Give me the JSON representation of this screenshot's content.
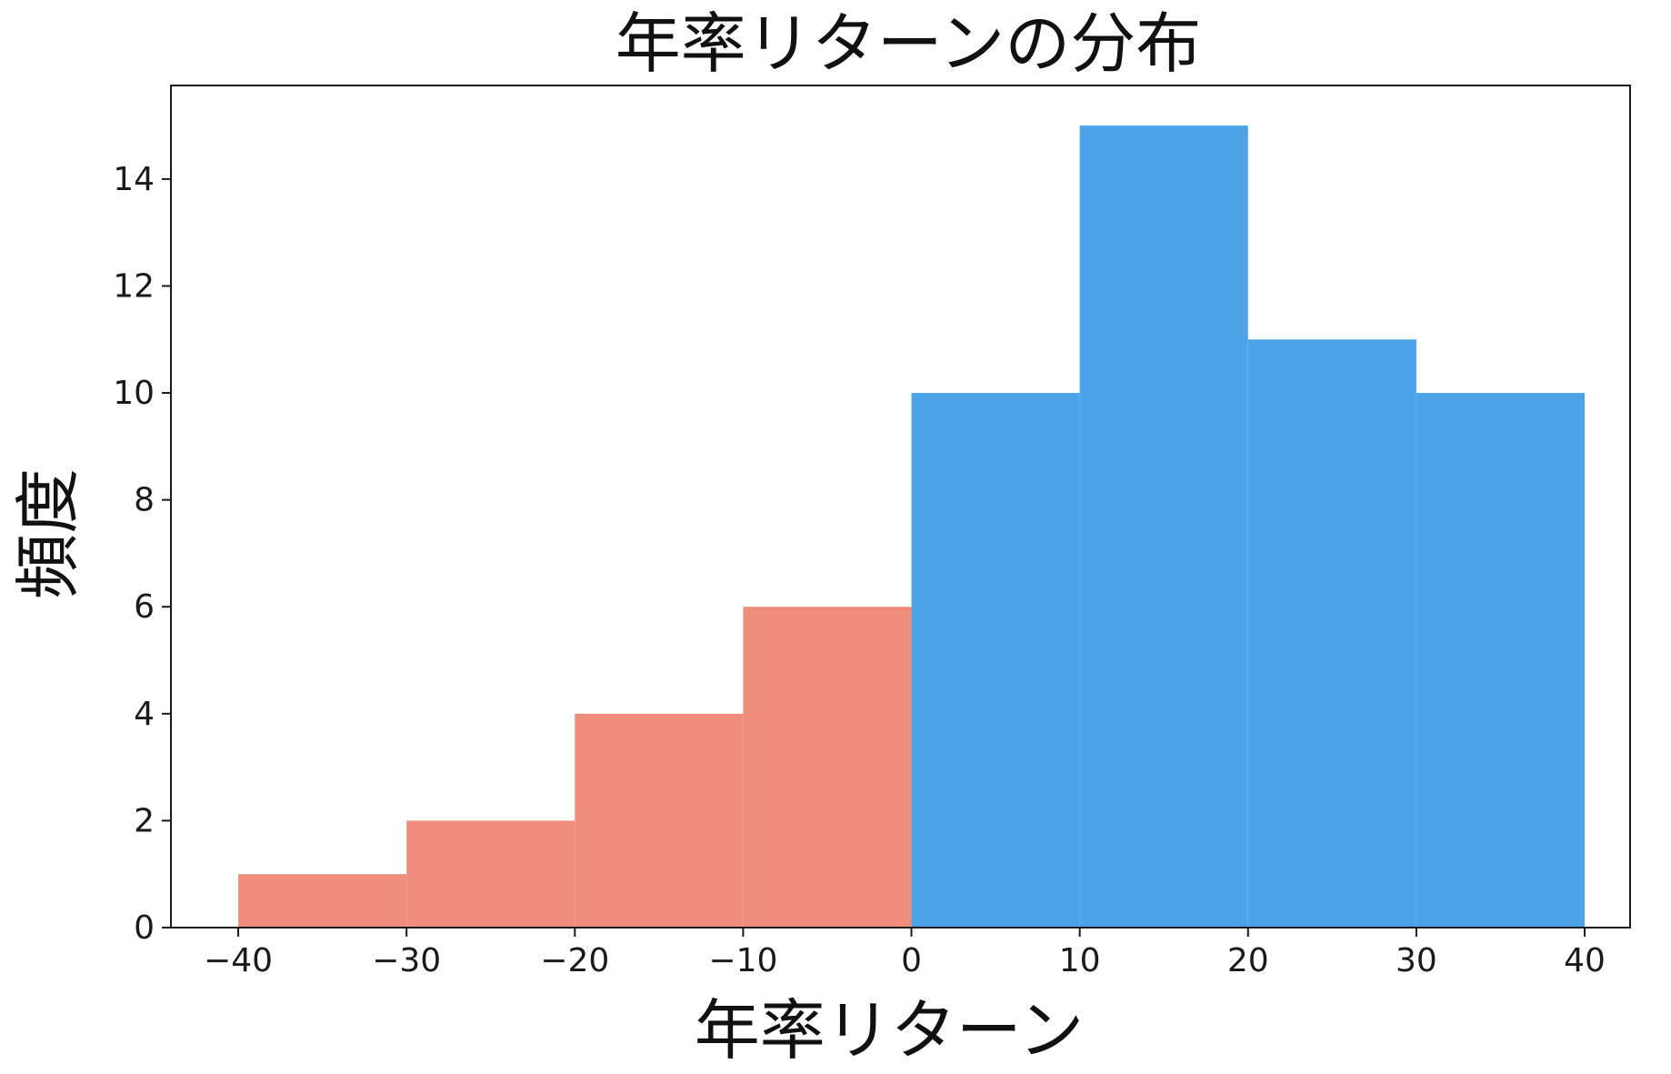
{
  "chart_data": {
    "type": "bar",
    "title": "年率リターンの分布",
    "xlabel": "年率リターン",
    "ylabel": "頻度",
    "bins": [
      {
        "x0": -40,
        "x1": -30,
        "count": 1,
        "color": "#f08e7e"
      },
      {
        "x0": -30,
        "x1": -20,
        "count": 2,
        "color": "#f08e7e"
      },
      {
        "x0": -20,
        "x1": -10,
        "count": 4,
        "color": "#f08e7e"
      },
      {
        "x0": -10,
        "x1": 0,
        "count": 6,
        "color": "#f08e7e"
      },
      {
        "x0": 0,
        "x1": 10,
        "count": 10,
        "color": "#4da3e8"
      },
      {
        "x0": 10,
        "x1": 20,
        "count": 15,
        "color": "#4da3e8"
      },
      {
        "x0": 20,
        "x1": 30,
        "count": 11,
        "color": "#4da3e8"
      },
      {
        "x0": 30,
        "x1": 40,
        "count": 10,
        "color": "#4da3e8"
      }
    ],
    "xlim": [
      -44,
      42.7
    ],
    "ylim": [
      0,
      15.75
    ],
    "xticks": [
      -40,
      -30,
      -20,
      -10,
      0,
      10,
      20,
      30,
      40
    ],
    "xtick_labels": [
      "−40",
      "−30",
      "−20",
      "−10",
      "0",
      "10",
      "20",
      "30",
      "40"
    ],
    "yticks": [
      0,
      2,
      4,
      6,
      8,
      10,
      12,
      14
    ],
    "ytick_labels": [
      "0",
      "2",
      "4",
      "6",
      "8",
      "10",
      "12",
      "14"
    ],
    "grid": false,
    "negative_color": "#f08e7e",
    "positive_color": "#4da3e8"
  }
}
